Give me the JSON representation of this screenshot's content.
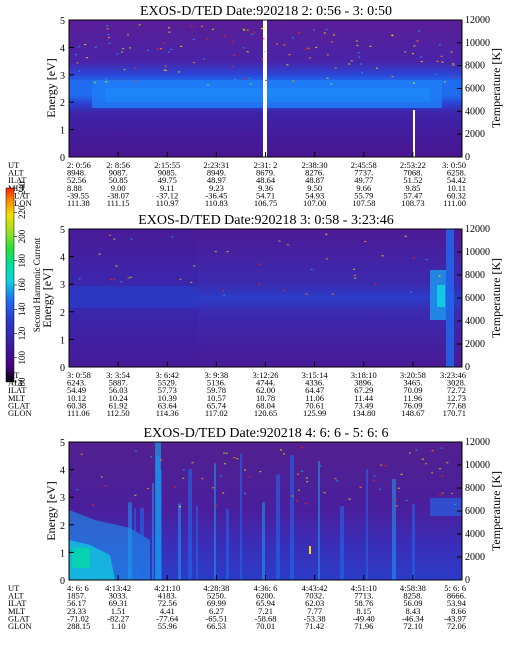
{
  "colormap": [
    "#000000",
    "#4b0082",
    "#3a1fa0",
    "#2b3cc8",
    "#1f6cf0",
    "#1d9cf0",
    "#10d0e0",
    "#00e0a0",
    "#20e040",
    "#a0e020",
    "#f0e000",
    "#ff9000",
    "#ff2000"
  ],
  "colorbar": {
    "label": "Second Harmonic Current",
    "ticks": [
      "80",
      "100",
      "120",
      "140",
      "160",
      "180",
      "200",
      "220",
      "240"
    ],
    "range": [
      80,
      240
    ]
  },
  "ephemeris_labels": [
    "UT",
    "ALT",
    "ILAT",
    "MLT",
    "GLAT",
    "GLON"
  ],
  "chart_data": [
    {
      "type": "heatmap",
      "title": "EXOS-D/TED  Date:920218  2: 0:56 - 3: 0:50",
      "ylabel": "Energy [eV]",
      "y2label": "Temperature [K]",
      "ylim": [
        0,
        5
      ],
      "y2lim": [
        0,
        12000
      ],
      "yticks": [
        "0",
        "1",
        "2",
        "3",
        "4",
        "5"
      ],
      "y2ticks": [
        "0",
        "2000",
        "4000",
        "6000",
        "8000",
        "10000",
        "12000"
      ],
      "columns": [
        [
          "2: 0:56",
          "8948.",
          "52.56",
          "8.88",
          "-39.55",
          "111.38"
        ],
        [
          "2: 8:56",
          "9087.",
          "50.85",
          "9.00",
          "-38.07",
          "111.15"
        ],
        [
          "2:15:55",
          "9085.",
          "49.75",
          "9.11",
          "-37.12",
          "110.97"
        ],
        [
          "2:23:31",
          "8949.",
          "48.97",
          "9.23",
          "-36.45",
          "110.83"
        ],
        [
          "2:31: 2",
          "8679.",
          "48.64",
          "9.36",
          "54.71",
          "106.75"
        ],
        [
          "2:38:30",
          "8276.",
          "48.87",
          "9.50",
          "54.93",
          "107.00"
        ],
        [
          "2:45:58",
          "7737.",
          "49.77",
          "9.66",
          "55.79",
          "107.58"
        ],
        [
          "2:53:22",
          "7068.",
          "51.52",
          "9.85",
          "57.47",
          "108.73"
        ],
        [
          "3: 0:50",
          "6258.",
          "54.42",
          "10.11",
          "60.32",
          "111.00"
        ]
      ]
    },
    {
      "type": "heatmap",
      "title": "EXOS-D/TED  Date:920218  3: 0:58 - 3:23:46",
      "ylabel": "Energy [eV]",
      "y2label": "Temperature [K]",
      "ylim": [
        0,
        5
      ],
      "y2lim": [
        0,
        12000
      ],
      "yticks": [
        "0",
        "1",
        "2",
        "3",
        "4",
        "5"
      ],
      "y2ticks": [
        "0",
        "2000",
        "4000",
        "6000",
        "8000",
        "10000",
        "12000"
      ],
      "columns": [
        [
          "3: 0:58",
          "6243.",
          "54.49",
          "10.12",
          "60.38",
          "111.06"
        ],
        [
          "3: 3:54",
          "5887.",
          "56.03",
          "10.24",
          "61.92",
          "112.50"
        ],
        [
          "3: 6:42",
          "5529.",
          "57.73",
          "10.39",
          "63.64",
          "114.36"
        ],
        [
          "3: 9:38",
          "5136.",
          "59.78",
          "10.57",
          "65.74",
          "117.02"
        ],
        [
          "3:12:26",
          "4744.",
          "62.00",
          "10.78",
          "68.04",
          "120.65"
        ],
        [
          "3:15:14",
          "4336.",
          "64.47",
          "11.06",
          "70.61",
          "125.99"
        ],
        [
          "3:18:10",
          "3896.",
          "67.29",
          "11.44",
          "73.49",
          "134.80"
        ],
        [
          "3:20:58",
          "3465.",
          "70.09",
          "11.96",
          "76.09",
          "148.67"
        ],
        [
          "3:23:46",
          "3028.",
          "72.72",
          "12.73",
          "77.68",
          "170.71"
        ]
      ]
    },
    {
      "type": "heatmap",
      "title": "EXOS-D/TED  Date:920218  4: 6: 6 - 5: 6: 6",
      "ylabel": "Energy [eV]",
      "y2label": "Temperature [K]",
      "ylim": [
        0,
        5
      ],
      "y2lim": [
        0,
        12000
      ],
      "yticks": [
        "0",
        "1",
        "2",
        "3",
        "4",
        "5"
      ],
      "y2ticks": [
        "0",
        "2000",
        "4000",
        "6000",
        "8000",
        "10000",
        "12000"
      ],
      "columns": [
        [
          "4: 6: 6",
          "1857.",
          "56.17",
          "23.33",
          "-71.02",
          "288.15"
        ],
        [
          "4:13:42",
          "3033.",
          "69.31",
          "1.51",
          "-82.27",
          "1.10"
        ],
        [
          "4:21:10",
          "4183.",
          "72.56",
          "4.41",
          "-77.64",
          "55.96"
        ],
        [
          "4:28:38",
          "5250.",
          "69.99",
          "6.27",
          "-65.51",
          "66.53"
        ],
        [
          "4:36: 6",
          "6200.",
          "65.94",
          "7.21",
          "-58.68",
          "70.01"
        ],
        [
          "4:43:42",
          "7032.",
          "62.03",
          "7.77",
          "-53.38",
          "71.42"
        ],
        [
          "4:51:10",
          "7713.",
          "58.76",
          "8.15",
          "-49.40",
          "71.96"
        ],
        [
          "4:58:38",
          "8258.",
          "56.09",
          "8.43",
          "-46.34",
          "72.10"
        ],
        [
          "5: 6: 6",
          "8666.",
          "53.94",
          "8.66",
          "-43.97",
          "72.06"
        ]
      ]
    }
  ]
}
